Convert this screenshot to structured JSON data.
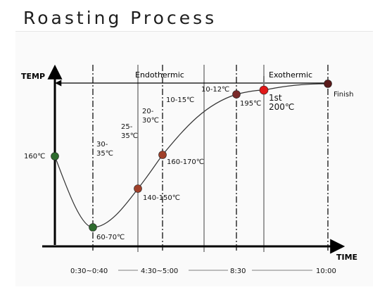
{
  "title": "Roasting Process",
  "axis": {
    "y_label": "TEMP",
    "x_label": "TIME"
  },
  "phases": [
    {
      "label": "Endothermic"
    },
    {
      "label": "Exothermic"
    }
  ],
  "time_labels": [
    "0:30~0:40",
    "4:30~5:00",
    "8:30",
    "10:00"
  ],
  "stage_labels": [
    {
      "text": "30-\n35℃"
    },
    {
      "text": "25-\n35℃"
    },
    {
      "text": "20-\n30℃"
    },
    {
      "text": "10-15℃"
    },
    {
      "text": "10-12℃"
    }
  ],
  "points": [
    {
      "label": "160℃",
      "color": "#2e6b2e"
    },
    {
      "label": "60-70℃",
      "color": "#2e6b2e"
    },
    {
      "label": "140-150℃",
      "color": "#a0402a"
    },
    {
      "label": "160-170℃",
      "color": "#a0402a"
    },
    {
      "label": "195℃",
      "color": "#7a2a2a"
    },
    {
      "label": "1st\n200℃",
      "color": "#e01818"
    },
    {
      "label": "Finish",
      "color": "#5a1a1a"
    }
  ]
}
